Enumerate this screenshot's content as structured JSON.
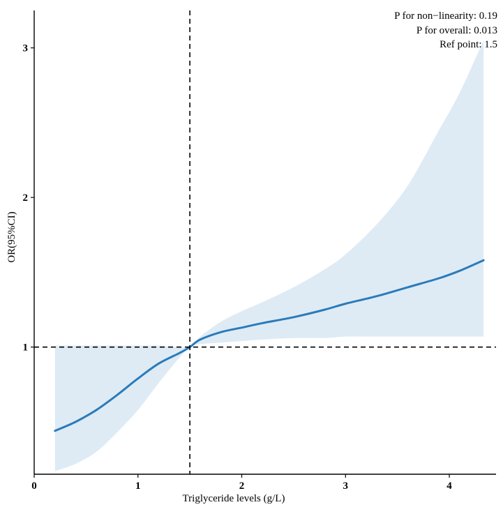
{
  "chart_data": {
    "type": "line",
    "title": "",
    "xlabel": "Triglyceride levels (g/L)",
    "ylabel": "OR(95%CI)",
    "xlim": [
      0,
      4.45
    ],
    "ylim": [
      0.15,
      3.25
    ],
    "x_ticks": [
      0,
      1,
      2,
      3,
      4
    ],
    "y_ticks": [
      1,
      2,
      3
    ],
    "grid": false,
    "reference_lines": {
      "x": 1.5,
      "y": 1
    },
    "annotations": [
      "P for non−linearity:  0.19",
      "P for overall:  0.013",
      "Ref point:  1.5"
    ],
    "colors": {
      "line": "#2b7bba",
      "band": "#deebf5",
      "reference": "#000000"
    },
    "series": [
      {
        "x": [
          0.2,
          0.4,
          0.6,
          0.8,
          1.0,
          1.2,
          1.4,
          1.5,
          1.6,
          1.8,
          2.0,
          2.2,
          2.5,
          2.8,
          3.0,
          3.3,
          3.6,
          3.9,
          4.1,
          4.33
        ],
        "y": [
          0.44,
          0.5,
          0.58,
          0.68,
          0.79,
          0.89,
          0.96,
          1.0,
          1.05,
          1.1,
          1.13,
          1.16,
          1.2,
          1.25,
          1.29,
          1.34,
          1.4,
          1.46,
          1.51,
          1.58
        ],
        "lower": [
          0.17,
          0.22,
          0.3,
          0.43,
          0.58,
          0.76,
          0.93,
          1.0,
          1.02,
          1.03,
          1.04,
          1.05,
          1.06,
          1.06,
          1.07,
          1.07,
          1.07,
          1.07,
          1.07,
          1.07
        ],
        "upper": [
          1.01,
          1.01,
          1.01,
          1.01,
          1.01,
          1.01,
          1.0,
          1.0,
          1.07,
          1.17,
          1.24,
          1.3,
          1.4,
          1.52,
          1.62,
          1.82,
          2.08,
          2.45,
          2.7,
          3.05
        ]
      }
    ]
  }
}
